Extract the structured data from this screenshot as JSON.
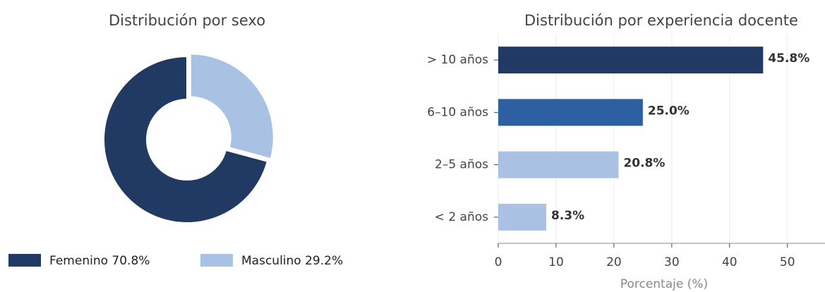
{
  "chart_data": [
    {
      "type": "pie",
      "title": "Distribución por sexo",
      "labels": [
        "Femenino 70.8%",
        "Masculino 29.2%"
      ],
      "values": [
        70.8,
        29.2
      ],
      "colors": [
        "#213a63",
        "#a9c1e2"
      ],
      "donut": true
    },
    {
      "type": "bar",
      "orientation": "horizontal",
      "title": "Distribución por experiencia docente",
      "categories": [
        "> 10 años",
        "6–10 años",
        "2–5 años",
        "< 2 años"
      ],
      "values": [
        45.8,
        25,
        20.8,
        8.3
      ],
      "value_labels": [
        "45.8%",
        "25.0%",
        "20.8%",
        "8.3%"
      ],
      "colors": [
        "#213a63",
        "#2e5fa3",
        "#a9c1e2",
        "#a9c1e2"
      ],
      "xlabel": "Porcentaje (%)",
      "xlim": [
        0,
        56.5
      ],
      "xticks": [
        0,
        10,
        20,
        30,
        40,
        50
      ],
      "grid": true
    }
  ]
}
